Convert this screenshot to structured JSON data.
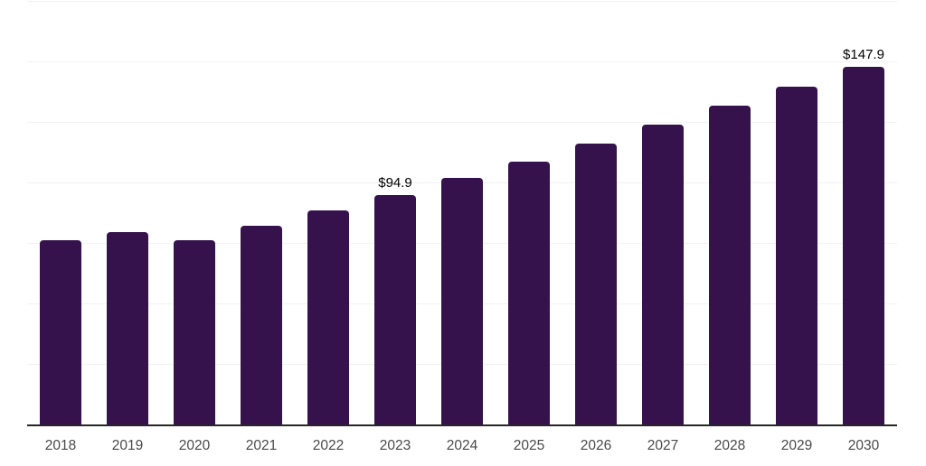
{
  "chart_data": {
    "type": "bar",
    "title": "",
    "xlabel": "",
    "ylabel": "",
    "categories": [
      "2018",
      "2019",
      "2020",
      "2021",
      "2022",
      "2023",
      "2024",
      "2025",
      "2026",
      "2027",
      "2028",
      "2029",
      "2030"
    ],
    "values": [
      76.3,
      79.5,
      76.1,
      82.1,
      88.4,
      94.9,
      101.8,
      108.5,
      116.0,
      123.8,
      131.6,
      139.7,
      147.9
    ],
    "point_labels": [
      "",
      "",
      "",
      "",
      "",
      "$94.9",
      "",
      "",
      "",
      "",
      "",
      "",
      "$147.9"
    ],
    "ylim": [
      0,
      175
    ],
    "grid_step": 25,
    "grid": true,
    "legend": false,
    "colors": {
      "bar": "#36124d",
      "axis_line": "#262626",
      "gridline": "#f2f2f2",
      "tick_label": "#4a4a4a",
      "point_label": "#000000",
      "background": "#ffffff"
    }
  }
}
